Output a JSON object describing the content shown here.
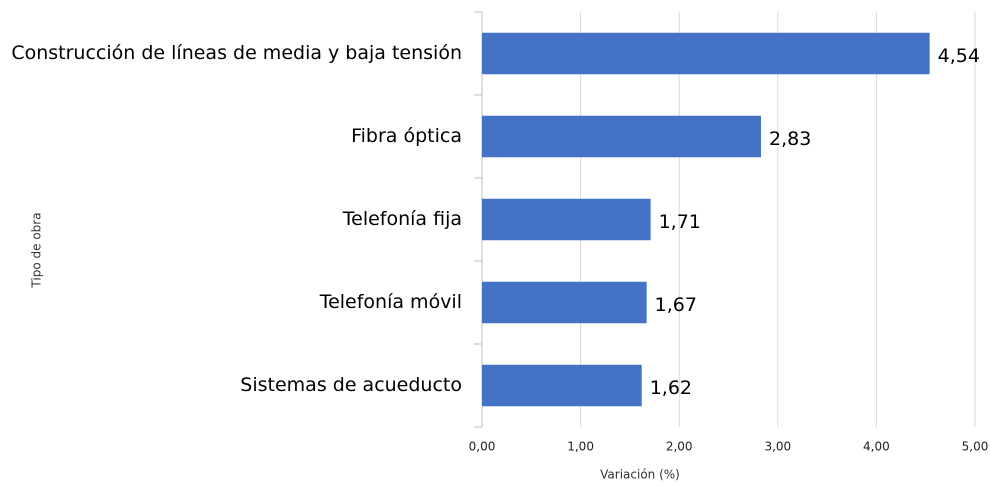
{
  "chart_data": {
    "type": "bar",
    "orientation": "horizontal",
    "x_label": "Variación (%)",
    "y_label": "Tipo de obra",
    "categories": [
      "Construcción de líneas de media y baja tensión",
      "Fibra óptica",
      "Telefonía fija",
      "Telefonía móvil",
      "Sistemas de acueducto"
    ],
    "values": [
      4.54,
      2.83,
      1.71,
      1.67,
      1.62
    ],
    "value_labels": [
      "4,54",
      "2,83",
      "1,71",
      "1,67",
      "1,62"
    ],
    "color": "#4472c4",
    "xlim": [
      0,
      5
    ],
    "xticks": [
      {
        "value": 0,
        "label": "0,00"
      },
      {
        "value": 1,
        "label": "1,00"
      },
      {
        "value": 2,
        "label": "2,00"
      },
      {
        "value": 3,
        "label": "3,00"
      },
      {
        "value": 4,
        "label": "4,00"
      },
      {
        "value": 5,
        "label": "5,00"
      }
    ],
    "grid": true
  }
}
